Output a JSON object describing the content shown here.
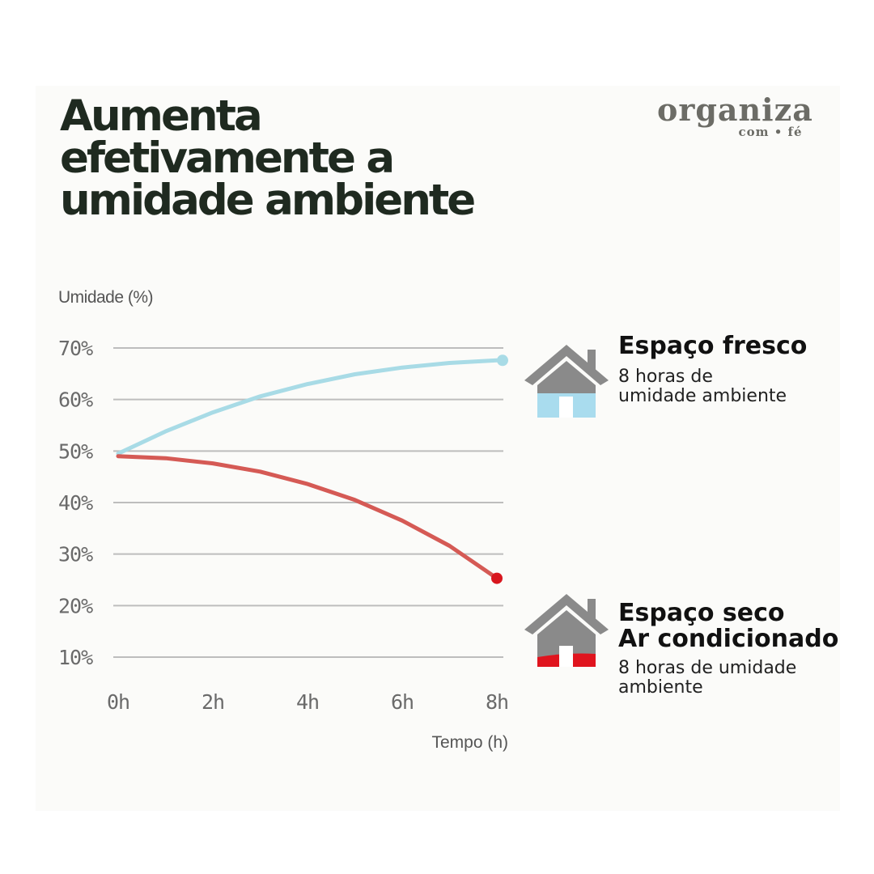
{
  "title_lines": [
    "Aumenta",
    "efetivamente a",
    "umidade ambiente"
  ],
  "logo": {
    "main": "organiza",
    "sub": "com • fé"
  },
  "chart_data": {
    "type": "line",
    "ylabel": "Umidade (%)",
    "xlabel": "Tempo (h)",
    "x_ticks": [
      "0h",
      "2h",
      "4h",
      "6h",
      "8h"
    ],
    "y_ticks": [
      "70%",
      "60%",
      "50%",
      "40%",
      "30%",
      "20%",
      "10%"
    ],
    "xlim": [
      0,
      8
    ],
    "ylim": [
      10,
      70
    ],
    "grid": true,
    "series": [
      {
        "name": "Espaço fresco",
        "color": "#a8dbe6",
        "x": [
          0,
          1,
          2,
          3,
          4,
          5,
          6,
          7,
          8
        ],
        "y": [
          49.5,
          53.8,
          57.5,
          60.6,
          63.0,
          64.9,
          66.2,
          67.1,
          67.6
        ]
      },
      {
        "name": "Espaço seco Ar condicionado",
        "color": "#d55a55",
        "x": [
          0,
          1,
          2,
          3,
          4,
          5,
          6,
          7,
          8
        ],
        "y": [
          49.0,
          48.6,
          47.6,
          46.0,
          43.6,
          40.5,
          36.5,
          31.6,
          25.3
        ]
      }
    ]
  },
  "legend": [
    {
      "title_lines": [
        "Espaço fresco"
      ],
      "desc_lines": [
        "8 horas de",
        "umidade ambiente"
      ],
      "icon": "house-fresh-icon",
      "fill_color": "#a9dcee"
    },
    {
      "title_lines": [
        "Espaço seco",
        "Ar condicionado"
      ],
      "desc_lines": [
        "8 horas de umidade",
        "ambiente"
      ],
      "icon": "house-dry-icon",
      "fill_color": "#e0141e"
    }
  ]
}
